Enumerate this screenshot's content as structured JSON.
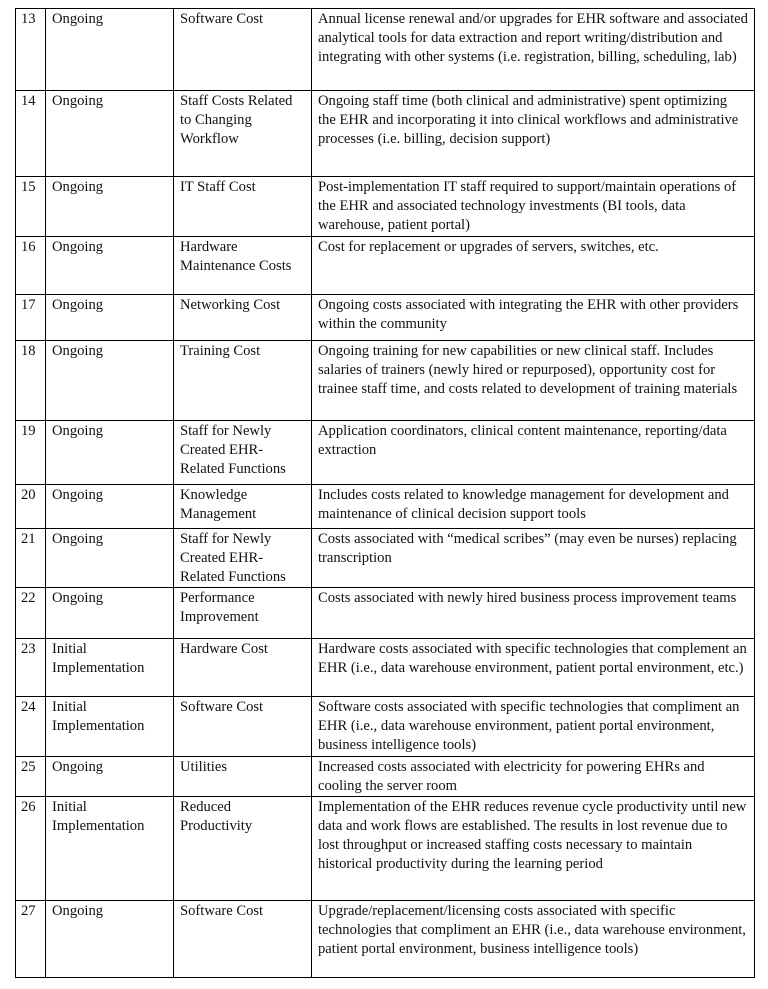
{
  "table": {
    "rows": [
      [
        13,
        "Ongoing",
        "Software Cost",
        "Annual license renewal and/or upgrades for EHR software and associated analytical tools for data extraction and report writing/distribution and integrating with other systems (i.e. registration, billing, scheduling, lab)"
      ],
      [
        14,
        "Ongoing",
        "Staff Costs Related to Changing Workflow",
        "Ongoing staff time (both clinical and administrative) spent optimizing the EHR and incorporating it into clinical workflows and administrative processes (i.e. billing, decision support)"
      ],
      [
        15,
        "Ongoing",
        "IT Staff Cost",
        "Post-implementation IT staff required to support/maintain operations of the EHR and associated technology investments (BI tools, data warehouse, patient portal)"
      ],
      [
        16,
        "Ongoing",
        "Hardware Maintenance Costs",
        "Cost for replacement or upgrades of servers, switches, etc."
      ],
      [
        17,
        "Ongoing",
        "Networking Cost",
        "Ongoing costs associated with integrating the EHR with other providers within the community"
      ],
      [
        18,
        "Ongoing",
        "Training Cost",
        "Ongoing training for new capabilities or new clinical staff. Includes salaries of trainers (newly hired or repurposed), opportunity cost for trainee staff time, and costs related to development of training materials"
      ],
      [
        19,
        "Ongoing",
        "Staff for Newly Created EHR-Related Functions",
        "Application coordinators, clinical content maintenance, reporting/data extraction"
      ],
      [
        20,
        "Ongoing",
        "Knowledge Management",
        "Includes costs related to knowledge management for development and maintenance of clinical decision support tools"
      ],
      [
        21,
        "Ongoing",
        "Staff for Newly Created EHR-Related Functions",
        "Costs associated with “medical scribes” (may even be nurses) replacing transcription"
      ],
      [
        22,
        "Ongoing",
        "Performance Improvement",
        "Costs associated with newly hired business process improvement teams"
      ],
      [
        23,
        "Initial Implementation",
        "Hardware Cost",
        "Hardware costs associated with specific technologies that complement an EHR (i.e., data warehouse environment, patient portal environment, etc.)"
      ],
      [
        24,
        "Initial Implementation",
        "Software Cost",
        "Software costs associated with specific technologies that compliment an EHR (i.e., data warehouse environment, patient portal environment, business intelligence tools)"
      ],
      [
        25,
        "Ongoing",
        "Utilities",
        "Increased costs associated with electricity for powering EHRs and cooling the server room"
      ],
      [
        26,
        "Initial Implementation",
        "Reduced Productivity",
        "Implementation of the EHR reduces revenue cycle productivity until new data and work flows are established. The results in lost revenue due to lost throughput or increased staffing costs necessary to maintain historical productivity during the learning period"
      ],
      [
        27,
        "Ongoing",
        "Software Cost",
        "Upgrade/replacement/licensing costs associated with specific technologies that compliment an EHR (i.e., data warehouse environment, patient portal environment, business intelligence tools)"
      ]
    ]
  }
}
